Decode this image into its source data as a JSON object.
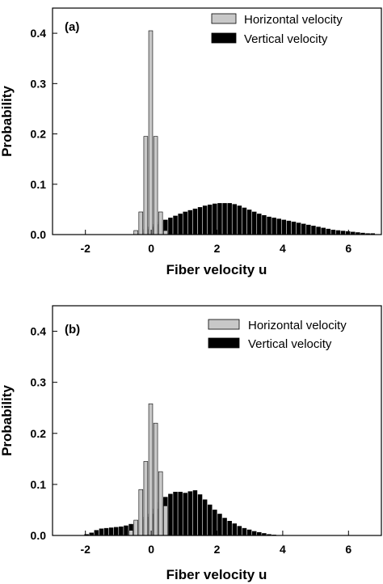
{
  "chart_data": [
    {
      "type": "bar",
      "panel_label": "(a)",
      "xlabel": "Fiber velocity u",
      "ylabel": "Probability",
      "xlim": [
        -3,
        7
      ],
      "ylim": [
        0,
        0.45
      ],
      "xticks": [
        -2,
        0,
        2,
        4,
        6
      ],
      "yticks": [
        0.0,
        0.1,
        0.2,
        0.3,
        0.4
      ],
      "xtick_labels": [
        "-2",
        "0",
        "2",
        "4",
        "6"
      ],
      "ytick_labels": [
        "0.0",
        "0.1",
        "0.2",
        "0.3",
        "0.4"
      ],
      "bin_width": 0.15,
      "grid": false,
      "legend": "top-right",
      "series": [
        {
          "name": "Horizontal velocity",
          "color": "#c8c8c8",
          "x": [
            -0.45,
            -0.3,
            -0.15,
            0.0,
            0.15,
            0.3,
            0.45
          ],
          "values": [
            0.008,
            0.045,
            0.195,
            0.405,
            0.195,
            0.045,
            0.008
          ]
        },
        {
          "name": "Vertical velocity",
          "color": "#000000",
          "x": [
            -0.45,
            -0.3,
            -0.15,
            0.0,
            0.15,
            0.3,
            0.45,
            0.6,
            0.75,
            0.9,
            1.05,
            1.2,
            1.35,
            1.5,
            1.65,
            1.8,
            1.95,
            2.1,
            2.25,
            2.4,
            2.55,
            2.7,
            2.85,
            3.0,
            3.15,
            3.3,
            3.45,
            3.6,
            3.75,
            3.9,
            4.05,
            4.2,
            4.35,
            4.5,
            4.65,
            4.8,
            4.95,
            5.1,
            5.25,
            5.4,
            5.55,
            5.7,
            5.85,
            6.0,
            6.15,
            6.3,
            6.45,
            6.6,
            6.75
          ],
          "values": [
            0.002,
            0.005,
            0.01,
            0.015,
            0.02,
            0.025,
            0.029,
            0.033,
            0.037,
            0.041,
            0.045,
            0.048,
            0.051,
            0.054,
            0.057,
            0.059,
            0.061,
            0.062,
            0.062,
            0.062,
            0.06,
            0.057,
            0.053,
            0.049,
            0.045,
            0.041,
            0.038,
            0.035,
            0.033,
            0.031,
            0.029,
            0.027,
            0.025,
            0.023,
            0.021,
            0.019,
            0.017,
            0.015,
            0.013,
            0.011,
            0.009,
            0.008,
            0.007,
            0.006,
            0.005,
            0.004,
            0.003,
            0.002,
            0.002
          ]
        }
      ]
    },
    {
      "type": "bar",
      "panel_label": "(b)",
      "xlabel": "Fiber velocity u",
      "ylabel": "Probability",
      "xlim": [
        -3,
        7
      ],
      "ylim": [
        0,
        0.45
      ],
      "xticks": [
        -2,
        0,
        2,
        4,
        6
      ],
      "yticks": [
        0.0,
        0.1,
        0.2,
        0.3,
        0.4
      ],
      "xtick_labels": [
        "-2",
        "0",
        "2",
        "4",
        "6"
      ],
      "ytick_labels": [
        "0.0",
        "0.1",
        "0.2",
        "0.3",
        "0.4"
      ],
      "bin_width": 0.15,
      "grid": false,
      "legend": "top-right",
      "series": [
        {
          "name": "Horizontal velocity",
          "color": "#c8c8c8",
          "x": [
            -0.6,
            -0.45,
            -0.3,
            -0.15,
            0.0,
            0.15,
            0.3,
            0.45
          ],
          "values": [
            0.01,
            0.03,
            0.09,
            0.145,
            0.258,
            0.22,
            0.125,
            0.058
          ]
        },
        {
          "name": "Vertical velocity",
          "color": "#000000",
          "x": [
            -1.95,
            -1.8,
            -1.65,
            -1.5,
            -1.35,
            -1.2,
            -1.05,
            -0.9,
            -0.75,
            -0.6,
            -0.45,
            -0.3,
            -0.15,
            0.0,
            0.15,
            0.3,
            0.45,
            0.6,
            0.75,
            0.9,
            1.05,
            1.2,
            1.35,
            1.5,
            1.65,
            1.8,
            1.95,
            2.1,
            2.25,
            2.4,
            2.55,
            2.7,
            2.85,
            3.0,
            3.15,
            3.3,
            3.45,
            3.6,
            3.75
          ],
          "values": [
            0.002,
            0.005,
            0.01,
            0.013,
            0.014,
            0.015,
            0.016,
            0.017,
            0.019,
            0.022,
            0.026,
            0.031,
            0.036,
            0.042,
            0.052,
            0.065,
            0.075,
            0.081,
            0.085,
            0.085,
            0.083,
            0.086,
            0.088,
            0.08,
            0.07,
            0.06,
            0.05,
            0.042,
            0.034,
            0.028,
            0.023,
            0.018,
            0.014,
            0.011,
            0.008,
            0.006,
            0.004,
            0.002,
            0.001
          ]
        }
      ]
    }
  ]
}
